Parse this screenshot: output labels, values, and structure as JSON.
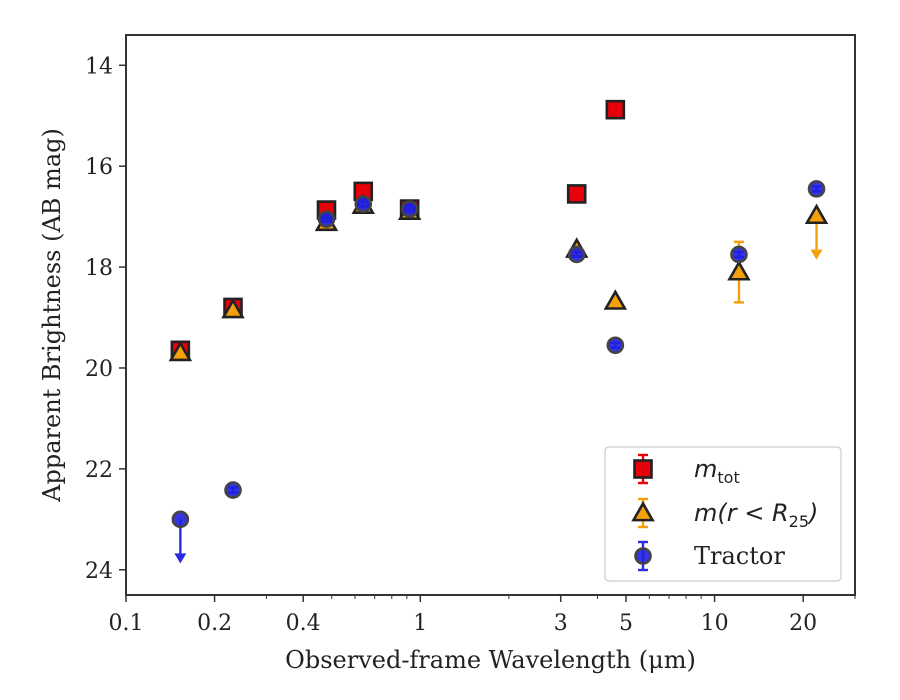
{
  "chart_data": {
    "type": "scatter",
    "xlabel": "Observed-frame Wavelength (μm)",
    "ylabel": "Apparent Brightness (AB mag)",
    "x_scale": "log",
    "y_inverted": true,
    "xlim": [
      0.1,
      30
    ],
    "ylim": [
      24.5,
      13.4
    ],
    "xticks": [
      {
        "value": 0.1,
        "label": "0.1"
      },
      {
        "value": 0.2,
        "label": "0.2"
      },
      {
        "value": 0.4,
        "label": "0.4"
      },
      {
        "value": 1,
        "label": "1"
      },
      {
        "value": 3,
        "label": "3"
      },
      {
        "value": 5,
        "label": "5"
      },
      {
        "value": 10,
        "label": "10"
      },
      {
        "value": 20,
        "label": "20"
      }
    ],
    "yticks": [
      {
        "value": 14,
        "label": "14"
      },
      {
        "value": 16,
        "label": "16"
      },
      {
        "value": 18,
        "label": "18"
      },
      {
        "value": 20,
        "label": "20"
      },
      {
        "value": 22,
        "label": "22"
      },
      {
        "value": 24,
        "label": "24"
      }
    ],
    "grid": false,
    "legend_position": "bottom-right",
    "series": [
      {
        "name": "m_tot",
        "legend_text": "m",
        "legend_sub": "tot",
        "marker": "square",
        "color": "#e8000b",
        "edgecolor": "#222222",
        "errcolor": "#e8000b",
        "points": [
          {
            "x": 0.153,
            "y": 19.65,
            "err": 0.12
          },
          {
            "x": 0.231,
            "y": 18.8,
            "err": 0.1
          },
          {
            "x": 0.48,
            "y": 16.87,
            "err": 0.05
          },
          {
            "x": 0.64,
            "y": 16.5,
            "err": 0.05
          },
          {
            "x": 0.92,
            "y": 16.85,
            "err": 0.05
          },
          {
            "x": 3.4,
            "y": 16.55,
            "err": 0.05
          },
          {
            "x": 4.6,
            "y": 14.88,
            "err": 0.05
          }
        ]
      },
      {
        "name": "m(r < R25)",
        "legend_text": "m(r < R",
        "legend_sub": "25",
        "legend_tail": ")",
        "marker": "triangle",
        "color": "#f5a00a",
        "edgecolor": "#222222",
        "errcolor": "#f5a00a",
        "points": [
          {
            "x": 0.153,
            "y": 19.7,
            "err": 0.05
          },
          {
            "x": 0.231,
            "y": 18.85,
            "err": 0.05
          },
          {
            "x": 0.48,
            "y": 17.12,
            "err": 0.05
          },
          {
            "x": 0.64,
            "y": 16.78,
            "err": 0.05
          },
          {
            "x": 0.92,
            "y": 16.9,
            "err": 0.05
          },
          {
            "x": 3.4,
            "y": 17.65,
            "err": 0.05
          },
          {
            "x": 4.6,
            "y": 18.68,
            "err": 0.05
          },
          {
            "x": 12.1,
            "y": 18.1,
            "err": 0.6
          },
          {
            "x": 22.2,
            "y": 16.98,
            "upper_limit": true
          }
        ]
      },
      {
        "name": "Tractor",
        "legend_text": "Tractor",
        "marker": "circle",
        "color": "#1f1fe0",
        "edgecolor": "#444444",
        "errcolor": "#2a2ae0",
        "points": [
          {
            "x": 0.153,
            "y": 23.0,
            "upper_limit": true
          },
          {
            "x": 0.231,
            "y": 22.42,
            "err": 0.05
          },
          {
            "x": 0.48,
            "y": 17.05,
            "err": 0.05
          },
          {
            "x": 0.64,
            "y": 16.75,
            "err": 0.05
          },
          {
            "x": 0.92,
            "y": 16.85,
            "err": 0.05
          },
          {
            "x": 3.4,
            "y": 17.75,
            "err": 0.05
          },
          {
            "x": 4.6,
            "y": 19.55,
            "err": 0.05
          },
          {
            "x": 12.1,
            "y": 17.75,
            "err": 0.05
          },
          {
            "x": 22.2,
            "y": 16.45,
            "err": 0.05
          }
        ]
      }
    ]
  }
}
